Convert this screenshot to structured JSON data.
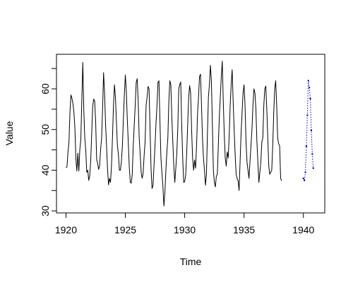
{
  "chart_data": {
    "type": "line",
    "title": "",
    "xlabel": "Time",
    "ylabel": "Value",
    "xlim": [
      1919.2,
      1941.8
    ],
    "ylim": [
      29.5,
      68.5
    ],
    "xticks": [
      1920,
      1925,
      1930,
      1935,
      1940
    ],
    "yticks": [
      30,
      40,
      50,
      60
    ],
    "grid": false,
    "series": [
      {
        "color": "#000000",
        "style": "solid",
        "start": 1920.0,
        "step": 0.0833333,
        "values": [
          40.6,
          40.8,
          44.4,
          46.7,
          54.1,
          58.5,
          57.7,
          56.4,
          54.3,
          50.5,
          42.9,
          39.8,
          44.2,
          39.8,
          45.1,
          47.4,
          57.1,
          66.5,
          55.0,
          48.0,
          45.0,
          39.5,
          40.0,
          37.5,
          38.6,
          42.3,
          49.0,
          55.6,
          57.5,
          57.0,
          52.0,
          42.6,
          41.7,
          40.2,
          41.0,
          45.0,
          47.8,
          55.0,
          64.0,
          59.0,
          51.5,
          46.0,
          40.4,
          36.4,
          38.0,
          37.0,
          41.0,
          48.0,
          55.8,
          61.0,
          58.0,
          52.0,
          46.0,
          44.0,
          40.0,
          40.0,
          42.1,
          45.8,
          52.4,
          58.5,
          63.4,
          59.6,
          52.4,
          46.8,
          40.7,
          37.1,
          36.8,
          39.0,
          46.1,
          51.0,
          56.0,
          61.6,
          62.5,
          57.0,
          48.0,
          44.0,
          39.5,
          38.0,
          39.2,
          43.6,
          47.0,
          56.0,
          58.0,
          60.6,
          60.0,
          50.0,
          40.4,
          35.5,
          36.2,
          41.2,
          46.0,
          51.5,
          56.0,
          61.6,
          62.0,
          52.0,
          43.0,
          39.4,
          35.9,
          31.2,
          34.5,
          40.0,
          44.5,
          48.0,
          57.0,
          62.0,
          61.0,
          53.0,
          47.0,
          41.0,
          37.0,
          40.4,
          44.0,
          50.0,
          60.0,
          61.0,
          61.7,
          51.0,
          43.0,
          37.0,
          37.2,
          38.8,
          44.0,
          51.0,
          57.8,
          60.8,
          59.0,
          50.0,
          43.0,
          40.0,
          42.5,
          40.5,
          46.0,
          54.0,
          58.0,
          63.0,
          63.6,
          56.0,
          47.8,
          43.0,
          40.0,
          36.3,
          39.0,
          49.0,
          58.0,
          61.0,
          65.8,
          62.0,
          51.0,
          40.0,
          37.0,
          35.9,
          38.5,
          39.0,
          46.0,
          53.0,
          58.0,
          63.0,
          66.8,
          57.0,
          49.0,
          43.0,
          41.0,
          44.5,
          43.0,
          48.5,
          56.0,
          61.0,
          64.7,
          57.0,
          50.0,
          44.0,
          39.0,
          38.0,
          37.4,
          35.0,
          42.0,
          49.0,
          54.0,
          59.0,
          61.0,
          56.0,
          47.0,
          42.0,
          40.0,
          38.0,
          42.0,
          46.0,
          50.0,
          56.0,
          60.0,
          59.0,
          55.0,
          47.0,
          42.0,
          37.0,
          39.5,
          42.0,
          47.0,
          48.0,
          56.0,
          60.0,
          60.7,
          55.0,
          48.0,
          41.0,
          39.0,
          39.5,
          40.0,
          46.0,
          54.0,
          60.0,
          62.0,
          56.0,
          48.0,
          46.5,
          46.0,
          38.0,
          37.4
        ]
      },
      {
        "color": "#0000cc",
        "style": "dotted",
        "start": 1940.0,
        "step": 0.0833333,
        "values": [
          38.0,
          37.5,
          39.5,
          45.9,
          53.5,
          62.0,
          60.3,
          57.6,
          49.8,
          44.0,
          40.5
        ]
      }
    ]
  }
}
